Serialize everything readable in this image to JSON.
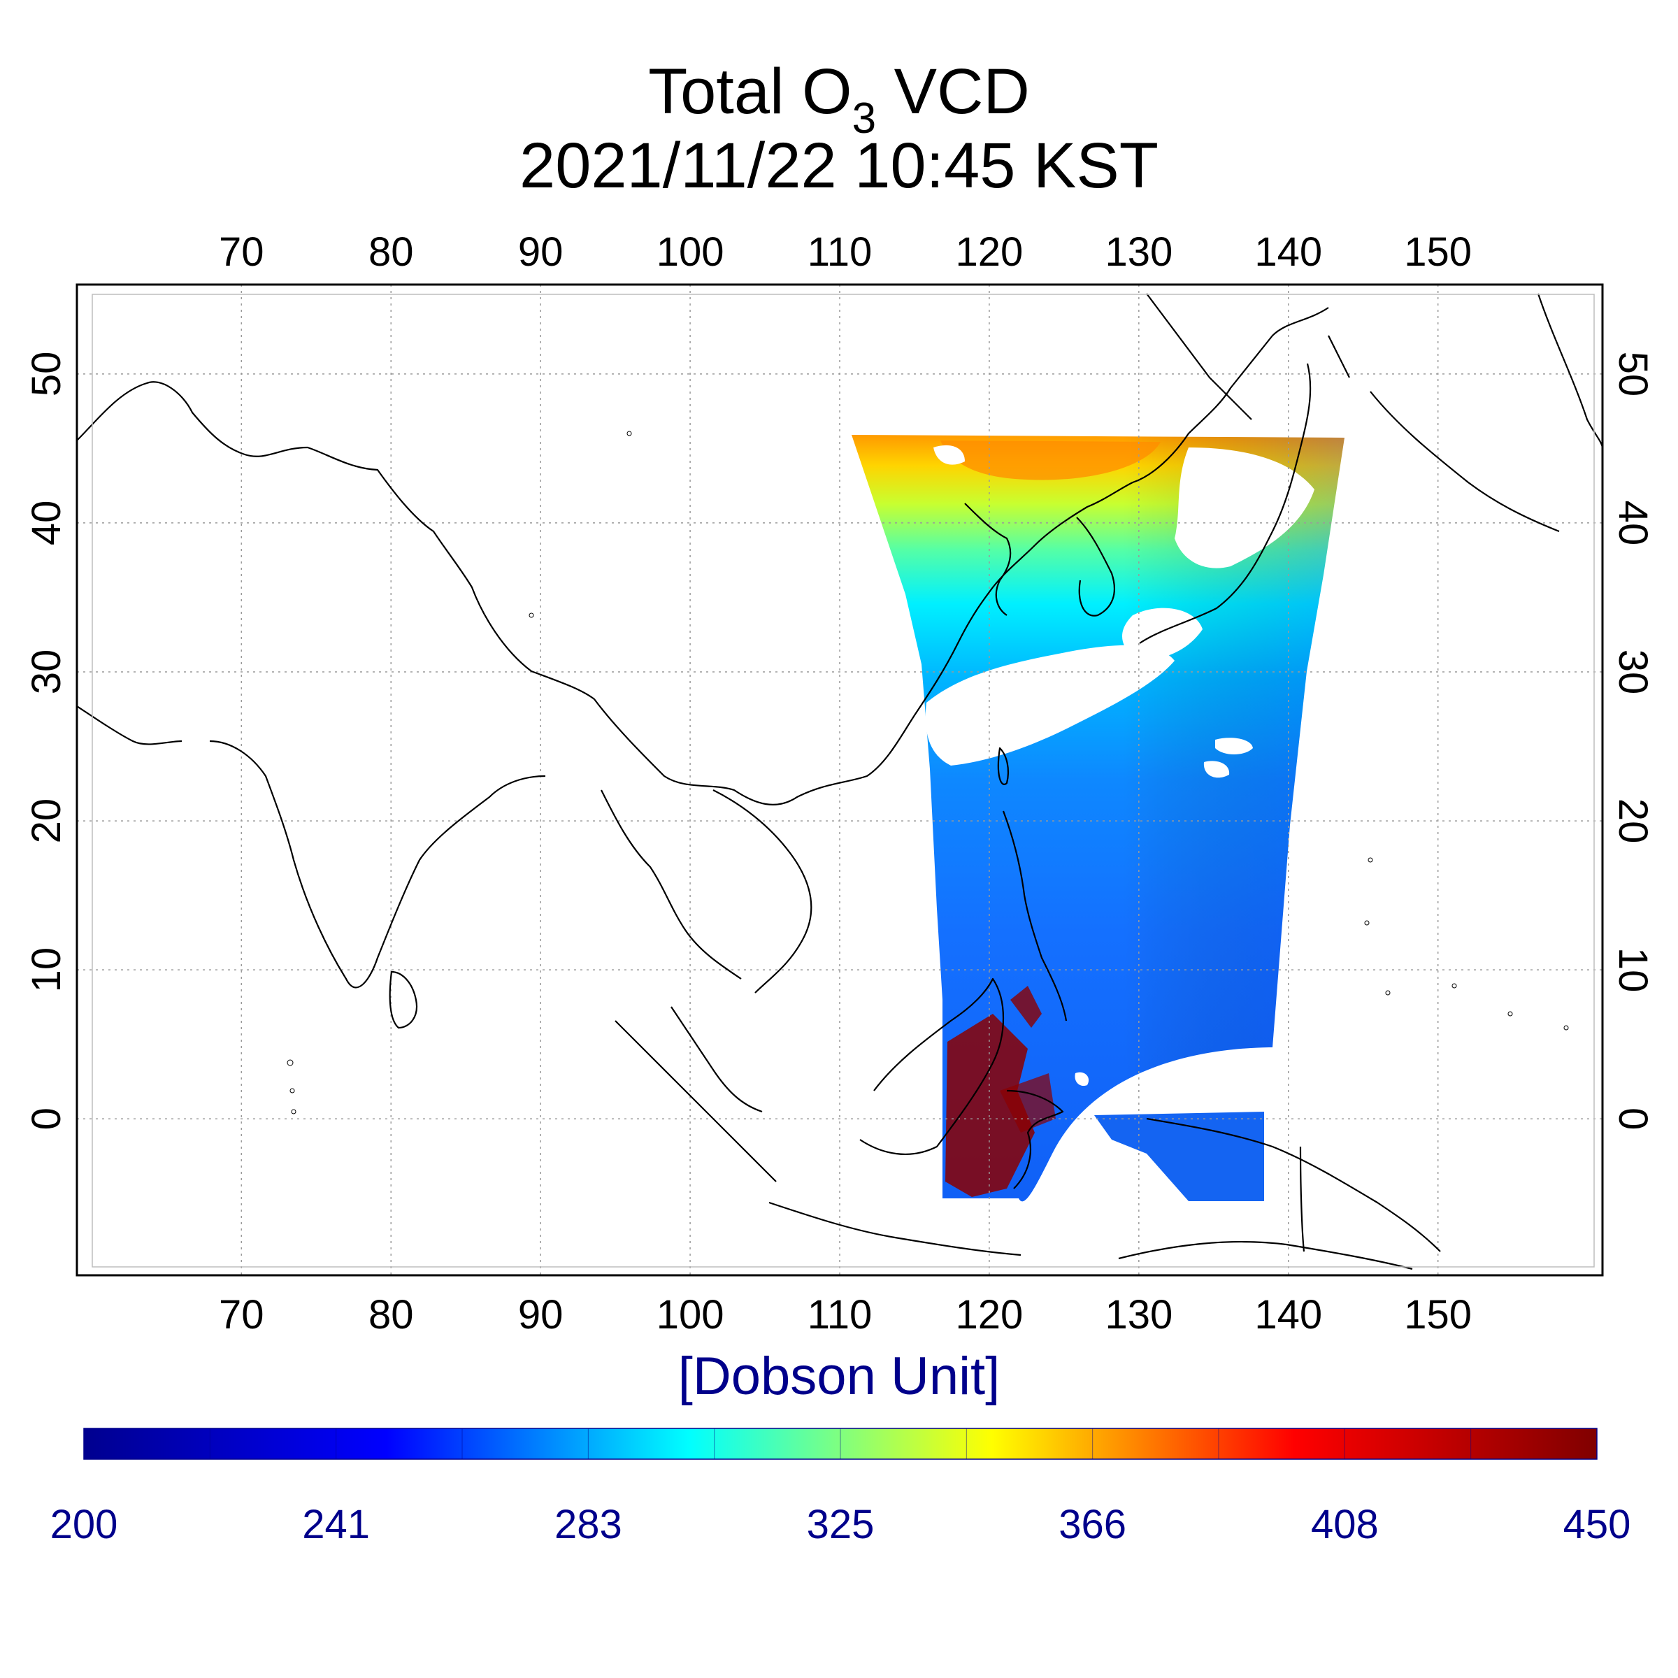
{
  "title": {
    "line1_prefix": "Total O",
    "line1_subscript": "3",
    "line1_suffix": " VCD",
    "line2": "2021/11/22 10:45 KST"
  },
  "map": {
    "lon_ticks": [
      "70",
      "80",
      "90",
      "100",
      "110",
      "120",
      "130",
      "140",
      "150"
    ],
    "lat_ticks": [
      "0",
      "10",
      "20",
      "30",
      "40",
      "50"
    ],
    "lon_range": [
      59,
      161
    ],
    "lat_range": [
      -10.5,
      56
    ],
    "grid": true,
    "swath_extent": {
      "west_lon_north": 111,
      "east_lon_north": 144,
      "north_lat": 45.5,
      "west_lon_south": 117,
      "east_lon_south": 138.5,
      "south_lat": -5.5
    }
  },
  "colorbar": {
    "unit_label": "[Dobson Unit]",
    "tick_labels": [
      "200",
      "241",
      "283",
      "325",
      "366",
      "408",
      "450"
    ],
    "min": 200,
    "max": 450,
    "colormap": "jet",
    "stops": [
      "#00008f",
      "#0000ff",
      "#00ffff",
      "#ffff00",
      "#ff0000",
      "#800000"
    ]
  },
  "colors": {
    "text": "#000000",
    "colorbar_text": "#00008b",
    "cloud_mask": "#ffffff"
  }
}
